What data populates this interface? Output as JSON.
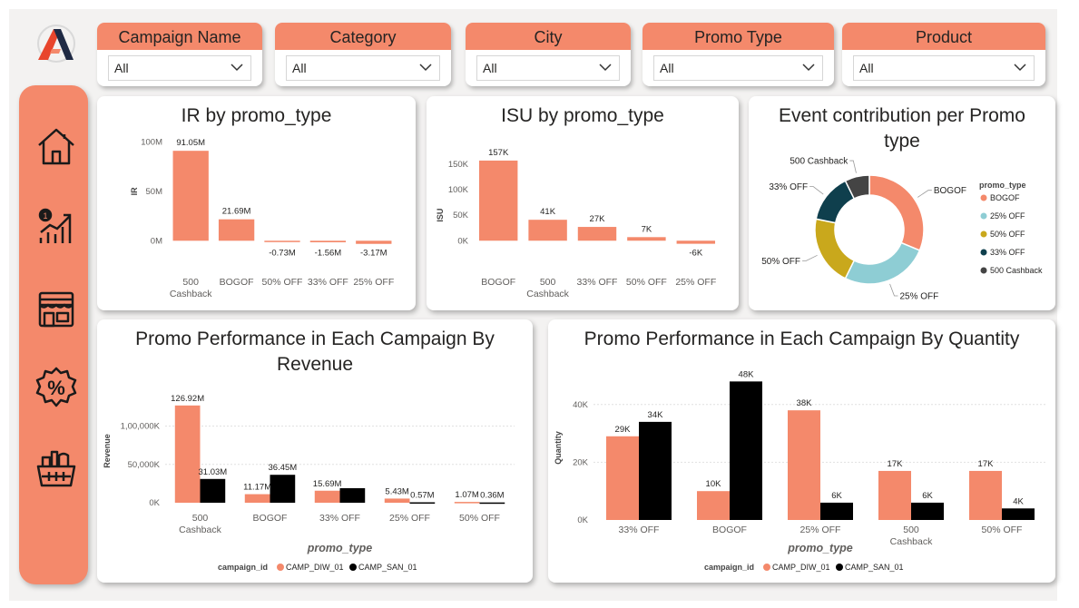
{
  "colors": {
    "accent": "#f4896b",
    "series2": "#000000",
    "donut": [
      "#f4896b",
      "#8ecdd4",
      "#c9a81c",
      "#0f3f4d",
      "#444444"
    ]
  },
  "nav": {
    "items": [
      {
        "icon": "home-icon"
      },
      {
        "icon": "growth-chart-icon"
      },
      {
        "icon": "store-icon"
      },
      {
        "icon": "discount-badge-icon"
      },
      {
        "icon": "grocery-basket-icon"
      }
    ]
  },
  "filters": [
    {
      "label": "Campaign Name",
      "value": "All"
    },
    {
      "label": "Category",
      "value": "All"
    },
    {
      "label": "City",
      "value": "All"
    },
    {
      "label": "Promo Type",
      "value": "All"
    },
    {
      "label": "Product",
      "value": "All"
    }
  ],
  "chart_data": [
    {
      "type": "bar",
      "title": "IR by promo_type",
      "ylabel": "IR",
      "xlabel": "",
      "categories": [
        "500 Cashback",
        "BOGOF",
        "50% OFF",
        "33% OFF",
        "25% OFF"
      ],
      "values": [
        91.05,
        21.69,
        -0.73,
        -1.56,
        -3.17
      ],
      "labels": [
        "91.05M",
        "21.69M",
        "-0.73M",
        "-1.56M",
        "-3.17M"
      ],
      "ylim": [
        -8,
        105
      ],
      "ticks": [
        0,
        50,
        100
      ],
      "tick_labels": [
        "0M",
        "50M",
        "100M"
      ]
    },
    {
      "type": "bar",
      "title": "ISU by promo_type",
      "ylabel": "ISU",
      "xlabel": "",
      "categories": [
        "BOGOF",
        "500 Cashback",
        "33% OFF",
        "50% OFF",
        "25% OFF"
      ],
      "values": [
        157,
        41,
        27,
        7,
        -6
      ],
      "labels": [
        "157K",
        "41K",
        "27K",
        "7K",
        "-6K"
      ],
      "ylim": [
        -12,
        180
      ],
      "ticks": [
        0,
        50,
        100,
        150
      ],
      "tick_labels": [
        "0K",
        "50K",
        "100K",
        "150K"
      ]
    },
    {
      "type": "pie",
      "title": "Event contribution per Promo type",
      "legend_title": "promo_type",
      "slices": [
        {
          "label": "BOGOF",
          "value": 30
        },
        {
          "label": "25% OFF",
          "value": 25
        },
        {
          "label": "50% OFF",
          "value": 20
        },
        {
          "label": "33% OFF",
          "value": 14
        },
        {
          "label": "500 Cashback",
          "value": 7
        }
      ]
    },
    {
      "type": "bar",
      "title": "Promo Performance in Each Campaign By Revenue",
      "xlabel": "promo_type",
      "ylabel": "Revenue",
      "categories": [
        "500 Cashback",
        "BOGOF",
        "33% OFF",
        "25% OFF",
        "50% OFF"
      ],
      "legend_title": "campaign_id",
      "series": [
        {
          "name": "CAMP_DIW_01",
          "values": [
            126.92,
            11.17,
            15.69,
            5.43,
            1.07
          ],
          "labels": [
            "126.92M",
            "11.17M",
            "15.69M",
            "5.43M",
            "1.07M"
          ]
        },
        {
          "name": "CAMP_SAN_01",
          "values": [
            31.03,
            36.45,
            19.0,
            0.57,
            0.36
          ],
          "labels": [
            "31.03M",
            "36.45M",
            "",
            "0.57M",
            "0.36M"
          ]
        }
      ],
      "ylim": [
        0,
        135
      ],
      "ticks": [
        0,
        50,
        100
      ],
      "tick_labels": [
        "0K",
        "50,000K",
        "1,00,000K"
      ]
    },
    {
      "type": "bar",
      "title": "Promo Performance in Each Campaign By Quantity",
      "xlabel": "promo_type",
      "ylabel": "Quantity",
      "categories": [
        "33% OFF",
        "BOGOF",
        "25% OFF",
        "500 Cashback",
        "50% OFF"
      ],
      "legend_title": "campaign_id",
      "series": [
        {
          "name": "CAMP_DIW_01",
          "values": [
            29,
            10,
            38,
            17,
            17
          ],
          "labels": [
            "29K",
            "10K",
            "38K",
            "17K",
            "17K"
          ]
        },
        {
          "name": "CAMP_SAN_01",
          "values": [
            34,
            48,
            6,
            6,
            4
          ],
          "labels": [
            "34K",
            "48K",
            "6K",
            "6K",
            "4K"
          ]
        }
      ],
      "ylim": [
        0,
        50
      ],
      "ticks": [
        0,
        20,
        40
      ],
      "tick_labels": [
        "0K",
        "20K",
        "40K"
      ]
    }
  ]
}
